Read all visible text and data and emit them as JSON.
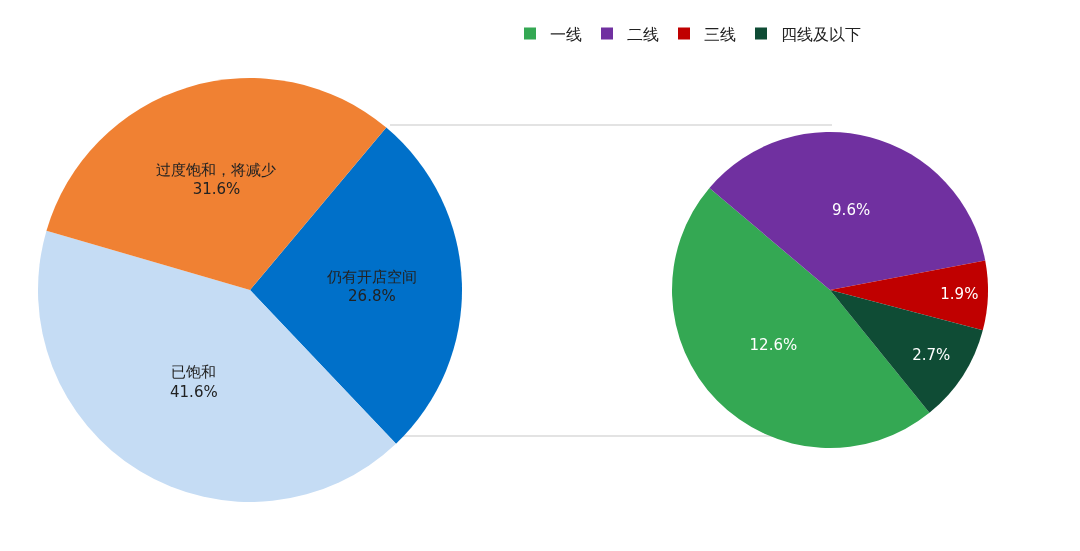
{
  "chart_data": [
    {
      "type": "pie",
      "categories": [
        "仍有开店空间",
        "已饱和",
        "过度饱和，将减少"
      ],
      "values": [
        26.8,
        41.6,
        31.6
      ],
      "value_labels": [
        "26.8%",
        "41.6%",
        "31.6%"
      ],
      "colors": [
        "#0070c9",
        "#c5dcf4",
        "#f08133"
      ],
      "legend": false
    },
    {
      "type": "pie",
      "categories": [
        "一线",
        "二线",
        "三线",
        "四线及以下"
      ],
      "values": [
        12.6,
        9.6,
        1.9,
        2.7
      ],
      "value_labels": [
        "12.6%",
        "9.6%",
        "1.9%",
        "2.7%"
      ],
      "colors": [
        "#34a853",
        "#7030a0",
        "#c00000",
        "#0f4c35"
      ],
      "legend": "top"
    }
  ]
}
